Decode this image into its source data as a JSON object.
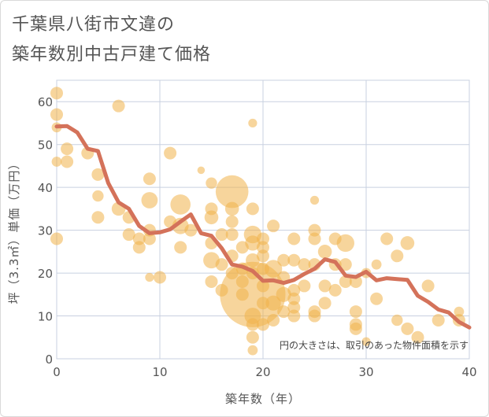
{
  "title": {
    "line1": "千葉県八街市文違の",
    "line2": "築年数別中古戸建て価格"
  },
  "colors": {
    "bubble": "#f0b24a",
    "line": "#d4725a",
    "grid": "#c8d0e0"
  },
  "chart_data": {
    "type": "scatter",
    "xlabel": "築年数（年）",
    "ylabel": "坪（3.3㎡）単価（万円）",
    "xlim": [
      0,
      40
    ],
    "ylim": [
      0,
      65
    ],
    "xticks": [
      0,
      10,
      20,
      30,
      40
    ],
    "yticks": [
      0,
      10,
      20,
      30,
      40,
      50,
      60
    ],
    "note": "円の大きさは、取引のあった物件面積を示す",
    "points": [
      [
        0,
        62,
        1.0
      ],
      [
        0,
        57,
        1.0
      ],
      [
        0,
        54,
        0.8
      ],
      [
        0,
        46,
        0.8
      ],
      [
        0,
        28,
        1.0
      ],
      [
        1,
        49,
        1.0
      ],
      [
        1,
        46,
        1.0
      ],
      [
        3,
        48,
        1.0
      ],
      [
        4,
        43,
        1.0
      ],
      [
        4,
        38,
        0.9
      ],
      [
        4,
        33,
        1.0
      ],
      [
        6,
        59,
        1.0
      ],
      [
        6,
        35,
        1.1
      ],
      [
        7,
        33,
        1.0
      ],
      [
        7,
        29,
        1.0
      ],
      [
        8,
        28,
        1.0
      ],
      [
        8,
        26,
        1.0
      ],
      [
        9,
        42,
        1.0
      ],
      [
        9,
        37,
        1.3
      ],
      [
        9,
        30,
        1.0
      ],
      [
        9,
        28,
        1.0
      ],
      [
        9,
        19,
        0.7
      ],
      [
        10,
        19,
        1.0
      ],
      [
        11,
        48,
        1.0
      ],
      [
        11,
        32,
        1.0
      ],
      [
        12,
        36,
        1.6
      ],
      [
        12,
        31,
        1.3
      ],
      [
        12,
        26,
        1.0
      ],
      [
        13,
        30,
        1.0
      ],
      [
        14,
        44,
        0.6
      ],
      [
        15,
        41,
        0.9
      ],
      [
        15,
        35,
        1.0
      ],
      [
        15,
        33,
        1.1
      ],
      [
        15,
        27,
        1.0
      ],
      [
        15,
        23,
        1.3
      ],
      [
        15,
        18,
        1.0
      ],
      [
        16,
        29,
        1.0
      ],
      [
        16,
        22,
        1.0
      ],
      [
        16,
        16,
        1.0
      ],
      [
        17,
        39,
        2.6
      ],
      [
        17,
        35,
        1.1
      ],
      [
        17,
        32,
        1.0
      ],
      [
        17,
        29,
        1.0
      ],
      [
        17,
        24,
        1.0
      ],
      [
        17,
        20,
        1.0
      ],
      [
        18,
        26,
        1.0
      ],
      [
        18,
        21,
        1.0
      ],
      [
        18,
        18,
        1.0
      ],
      [
        18,
        15,
        1.0
      ],
      [
        19,
        15,
        5.2
      ],
      [
        19,
        55,
        0.7
      ],
      [
        19,
        35,
        1.0
      ],
      [
        19,
        29,
        1.4
      ],
      [
        19,
        27,
        1.2
      ],
      [
        19,
        23,
        1.1
      ],
      [
        19,
        20,
        1.0
      ],
      [
        19,
        10,
        1.3
      ],
      [
        19,
        8,
        1.0
      ],
      [
        19,
        5,
        1.0
      ],
      [
        19,
        2,
        0.8
      ],
      [
        20,
        28,
        1.0
      ],
      [
        20,
        26,
        1.0
      ],
      [
        20,
        24,
        1.0
      ],
      [
        20,
        21,
        1.0
      ],
      [
        20,
        17,
        1.0
      ],
      [
        20,
        13,
        1.0
      ],
      [
        20,
        8,
        1.0
      ],
      [
        21,
        31,
        1.0
      ],
      [
        21,
        21,
        1.4
      ],
      [
        21,
        13,
        1.2
      ],
      [
        21,
        9,
        1.0
      ],
      [
        22,
        23,
        1.0
      ],
      [
        22,
        19,
        1.0
      ],
      [
        22,
        15,
        1.2
      ],
      [
        22,
        11,
        1.0
      ],
      [
        23,
        28,
        1.0
      ],
      [
        23,
        23,
        1.0
      ],
      [
        23,
        16,
        1.0
      ],
      [
        23,
        14,
        1.0
      ],
      [
        23,
        12,
        1.0
      ],
      [
        23,
        10,
        1.0
      ],
      [
        24,
        22,
        1.0
      ],
      [
        24,
        17,
        1.0
      ],
      [
        25,
        37,
        0.7
      ],
      [
        25,
        30,
        1.0
      ],
      [
        25,
        28,
        1.0
      ],
      [
        25,
        22,
        1.0
      ],
      [
        25,
        11,
        1.0
      ],
      [
        25,
        10,
        1.0
      ],
      [
        26,
        25,
        1.1
      ],
      [
        26,
        17,
        1.0
      ],
      [
        26,
        13,
        1.0
      ],
      [
        27,
        28,
        1.0
      ],
      [
        27,
        22,
        1.0
      ],
      [
        27,
        16,
        1.0
      ],
      [
        28,
        27,
        1.4
      ],
      [
        28,
        22,
        1.0
      ],
      [
        28,
        18,
        1.0
      ],
      [
        29,
        18,
        1.0
      ],
      [
        29,
        11,
        1.0
      ],
      [
        29,
        8,
        1.0
      ],
      [
        29,
        7,
        1.0
      ],
      [
        30,
        20,
        0.8
      ],
      [
        30,
        4,
        0.7
      ],
      [
        31,
        22,
        0.8
      ],
      [
        31,
        14,
        1.0
      ],
      [
        32,
        28,
        1.0
      ],
      [
        33,
        24,
        1.0
      ],
      [
        33,
        9,
        0.9
      ],
      [
        34,
        27,
        1.1
      ],
      [
        34,
        7,
        1.0
      ],
      [
        35,
        5,
        1.0
      ],
      [
        36,
        17,
        1.0
      ],
      [
        37,
        9,
        1.0
      ],
      [
        39,
        11,
        0.8
      ],
      [
        39,
        9,
        1.0
      ]
    ],
    "trend": [
      [
        0,
        54.2
      ],
      [
        1,
        54.3
      ],
      [
        2,
        52.8
      ],
      [
        3,
        49.0
      ],
      [
        4,
        48.5
      ],
      [
        5,
        41.0
      ],
      [
        6,
        36.5
      ],
      [
        7,
        35.0
      ],
      [
        8,
        31.0
      ],
      [
        9,
        29.3
      ],
      [
        10,
        29.5
      ],
      [
        11,
        30.2
      ],
      [
        12,
        32.0
      ],
      [
        13,
        33.7
      ],
      [
        14,
        29.3
      ],
      [
        15,
        28.7
      ],
      [
        16,
        25.8
      ],
      [
        17,
        22.0
      ],
      [
        18,
        21.5
      ],
      [
        19,
        20.5
      ],
      [
        20,
        18.2
      ],
      [
        21,
        18.3
      ],
      [
        22,
        17.7
      ],
      [
        23,
        18.4
      ],
      [
        24,
        19.8
      ],
      [
        25,
        21.0
      ],
      [
        26,
        23.2
      ],
      [
        27,
        22.6
      ],
      [
        28,
        19.4
      ],
      [
        29,
        19.1
      ],
      [
        30,
        20.3
      ],
      [
        31,
        18.3
      ],
      [
        32,
        18.8
      ],
      [
        33,
        18.6
      ],
      [
        34,
        18.4
      ],
      [
        35,
        14.7
      ],
      [
        36,
        13.3
      ],
      [
        37,
        11.5
      ],
      [
        38,
        10.8
      ],
      [
        39,
        8.6
      ],
      [
        40,
        7.3
      ]
    ]
  }
}
